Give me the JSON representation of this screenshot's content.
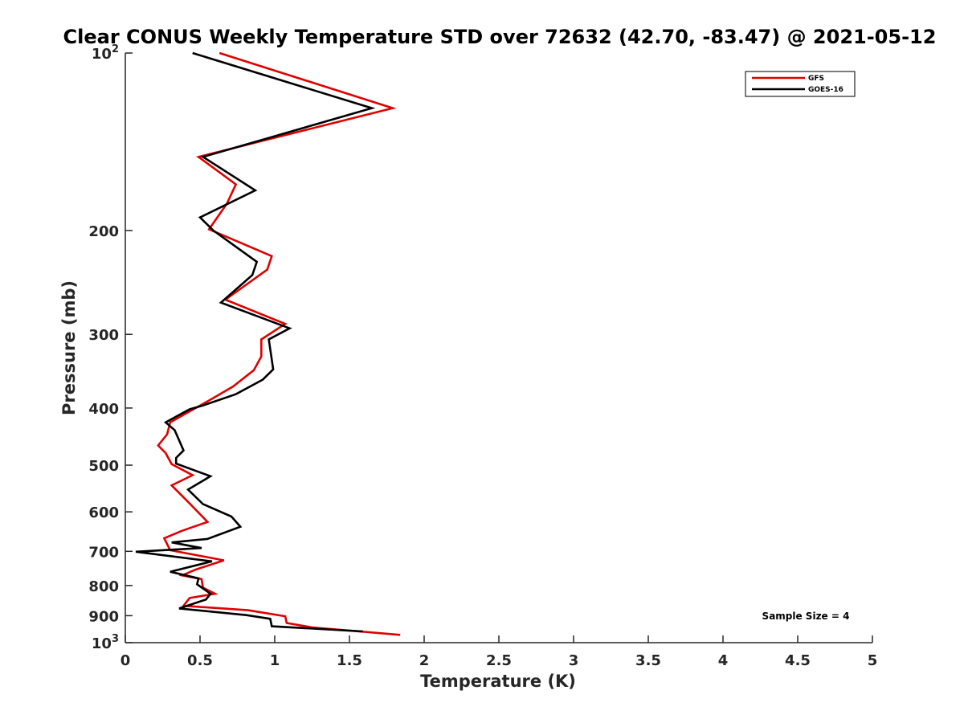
{
  "chart_data": {
    "type": "line",
    "title": "Clear CONUS Weekly Temperature STD over 72632 (42.70, -83.47) @ 2021-05-12",
    "xlabel": "Temperature (K)",
    "ylabel": "Pressure (mb)",
    "xlim": [
      0,
      5
    ],
    "ylim": [
      100,
      1000
    ],
    "y_scale": "log",
    "y_reversed": true,
    "grid": false,
    "legend_position": "top-right",
    "x_ticks": [
      "0",
      "0.5",
      "1",
      "1.5",
      "2",
      "2.5",
      "3",
      "3.5",
      "4",
      "4.5",
      "5"
    ],
    "y_ticks": [
      {
        "value": 100,
        "base": "10",
        "exp": "2"
      },
      {
        "value": 200,
        "label": "200"
      },
      {
        "value": 300,
        "label": "300"
      },
      {
        "value": 400,
        "label": "400"
      },
      {
        "value": 500,
        "label": "500"
      },
      {
        "value": 600,
        "label": "600"
      },
      {
        "value": 700,
        "label": "700"
      },
      {
        "value": 800,
        "label": "800"
      },
      {
        "value": 900,
        "label": "900"
      },
      {
        "value": 1000,
        "base": "10",
        "exp": "3"
      }
    ],
    "series": [
      {
        "name": "GFS",
        "color": "#e00000",
        "points": [
          [
            0.63,
            100
          ],
          [
            1.79,
            124
          ],
          [
            0.49,
            150
          ],
          [
            0.74,
            167
          ],
          [
            0.68,
            180
          ],
          [
            0.56,
            199
          ],
          [
            0.98,
            221
          ],
          [
            0.95,
            233
          ],
          [
            0.67,
            262
          ],
          [
            1.07,
            288
          ],
          [
            0.91,
            306
          ],
          [
            0.91,
            327
          ],
          [
            0.86,
            345
          ],
          [
            0.72,
            368
          ],
          [
            0.54,
            391
          ],
          [
            0.3,
            423
          ],
          [
            0.28,
            443
          ],
          [
            0.22,
            463
          ],
          [
            0.27,
            477
          ],
          [
            0.31,
            498
          ],
          [
            0.45,
            520
          ],
          [
            0.31,
            541
          ],
          [
            0.44,
            584
          ],
          [
            0.55,
            624
          ],
          [
            0.38,
            646
          ],
          [
            0.26,
            665
          ],
          [
            0.3,
            697
          ],
          [
            0.66,
            725
          ],
          [
            0.47,
            752
          ],
          [
            0.38,
            769
          ],
          [
            0.51,
            780
          ],
          [
            0.52,
            807
          ],
          [
            0.6,
            826
          ],
          [
            0.43,
            840
          ],
          [
            0.39,
            866
          ],
          [
            0.82,
            881
          ],
          [
            1.07,
            902
          ],
          [
            1.08,
            926
          ],
          [
            1.25,
            942
          ],
          [
            1.84,
            970
          ]
        ]
      },
      {
        "name": "GOES-16",
        "color": "#000000",
        "points": [
          [
            0.45,
            100
          ],
          [
            1.65,
            124
          ],
          [
            0.52,
            150
          ],
          [
            0.87,
            171
          ],
          [
            0.5,
            190
          ],
          [
            0.59,
            200
          ],
          [
            0.88,
            226
          ],
          [
            0.85,
            238
          ],
          [
            0.64,
            265
          ],
          [
            1.1,
            293
          ],
          [
            0.96,
            306
          ],
          [
            0.99,
            344
          ],
          [
            0.92,
            358
          ],
          [
            0.74,
            379
          ],
          [
            0.52,
            396
          ],
          [
            0.43,
            402
          ],
          [
            0.27,
            423
          ],
          [
            0.33,
            436
          ],
          [
            0.39,
            472
          ],
          [
            0.34,
            486
          ],
          [
            0.34,
            497
          ],
          [
            0.57,
            522
          ],
          [
            0.42,
            550
          ],
          [
            0.52,
            582
          ],
          [
            0.71,
            611
          ],
          [
            0.77,
            636
          ],
          [
            0.55,
            667
          ],
          [
            0.31,
            676
          ],
          [
            0.51,
            691
          ],
          [
            0.07,
            701
          ],
          [
            0.58,
            728
          ],
          [
            0.3,
            758
          ],
          [
            0.49,
            778
          ],
          [
            0.48,
            796
          ],
          [
            0.57,
            826
          ],
          [
            0.54,
            845
          ],
          [
            0.36,
            875
          ],
          [
            0.81,
            898
          ],
          [
            0.97,
            911
          ],
          [
            0.98,
            938
          ],
          [
            1.59,
            957
          ]
        ]
      }
    ],
    "annotation": "Sample Size = 4"
  }
}
